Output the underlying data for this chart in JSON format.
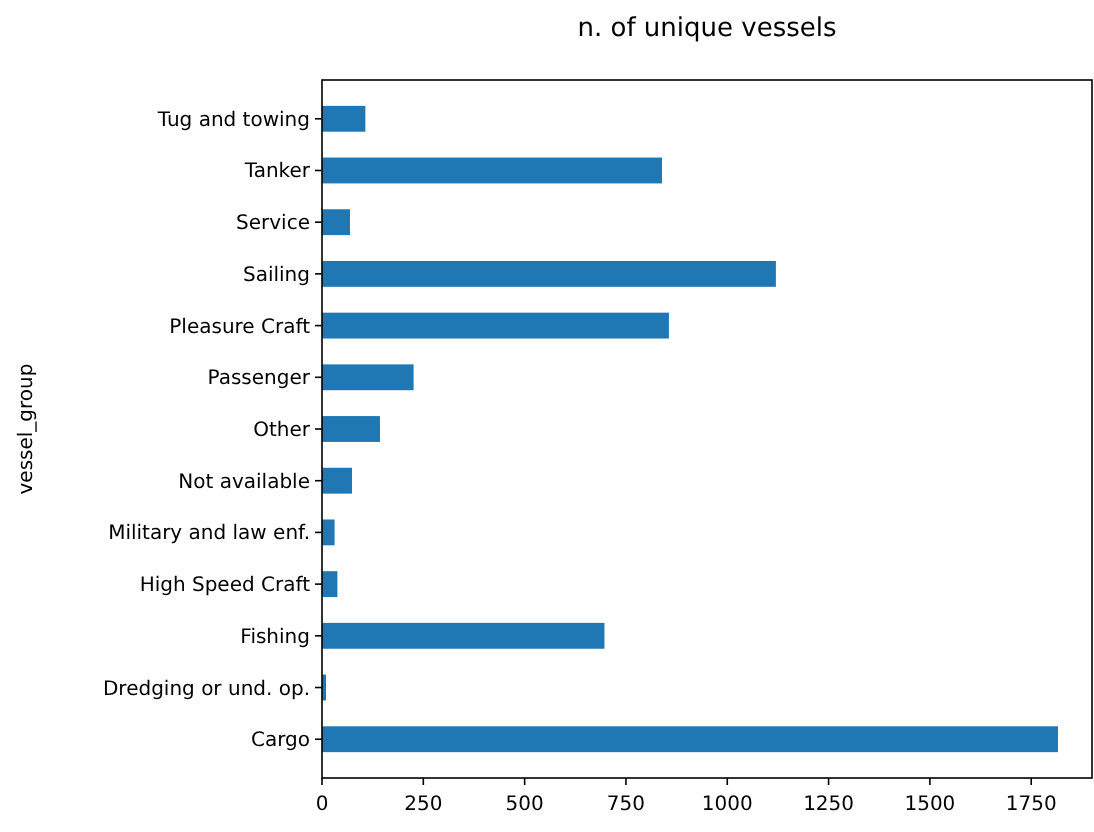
{
  "chart_data": {
    "type": "bar",
    "orientation": "horizontal",
    "title": "n. of unique vessels",
    "ylabel": "vessel_group",
    "categories": [
      "Tug and towing",
      "Tanker",
      "Service",
      "Sailing",
      "Pleasure Craft",
      "Passenger",
      "Other",
      "Not available",
      "Military and law enf.",
      "High Speed Craft",
      "Fishing",
      "Dredging or und. op.",
      "Cargo"
    ],
    "values": [
      107,
      839,
      69,
      1120,
      856,
      226,
      143,
      74,
      31,
      38,
      697,
      10,
      1816
    ],
    "color": "#1f77b4",
    "xlim": [
      0,
      1900
    ],
    "xticks": [
      0,
      250,
      500,
      750,
      1000,
      1250,
      1500,
      1750
    ],
    "grid": false
  }
}
